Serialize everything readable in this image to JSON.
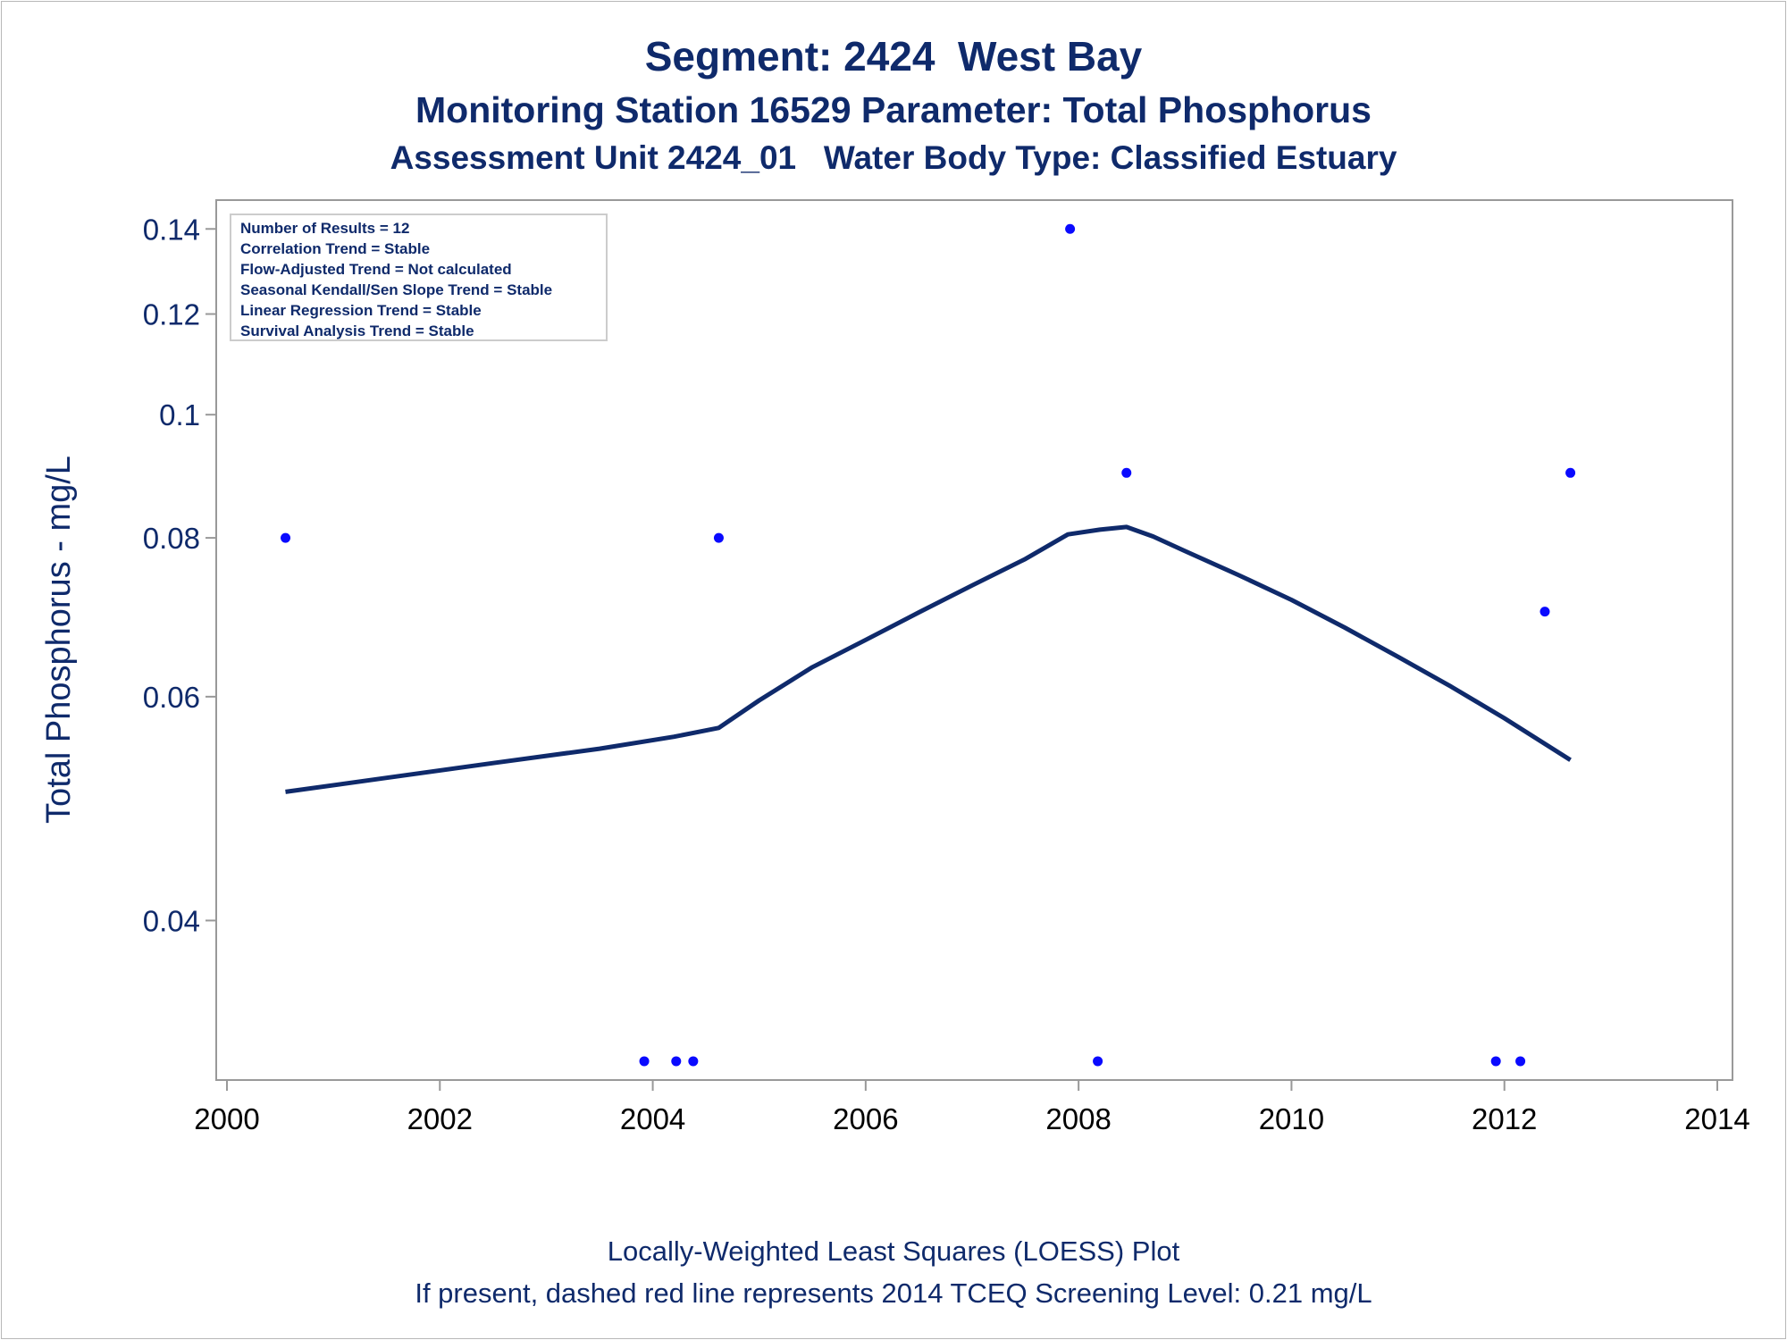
{
  "titles": {
    "line1": "Segment: 2424  West Bay",
    "line2": "Monitoring Station 16529 Parameter: Total Phosphorus",
    "line3": "Assessment Unit 2424_01   Water Body Type: Classified Estuary"
  },
  "footnotes": {
    "line1": "Locally-Weighted Least Squares (LOESS) Plot",
    "line2": "If present, dashed red line represents 2014 TCEQ Screening Level: 0.21 mg/L"
  },
  "stats_box": [
    "Number of Results = 12",
    "Correlation Trend = Stable",
    "Flow-Adjusted Trend = Not calculated",
    "Seasonal Kendall/Sen Slope Trend = Stable",
    "Linear Regression Trend = Stable",
    "Survival Analysis Trend = Stable"
  ],
  "colors": {
    "text": "#0f2a6b",
    "points": "#0a0aff",
    "loess_line": "#0f2a6b",
    "axis": "#999999"
  },
  "chart_data": {
    "type": "scatter",
    "ylabel": "Total Phosphorus - mg/L",
    "y_scale": "log",
    "xlim": [
      2000,
      2014
    ],
    "ylim": [
      0.0305,
      0.1435
    ],
    "x_ticks": [
      2000,
      2002,
      2004,
      2006,
      2008,
      2010,
      2012,
      2014
    ],
    "y_ticks": [
      {
        "value": 0.04,
        "label": "0.04"
      },
      {
        "value": 0.06,
        "label": "0.06"
      },
      {
        "value": 0.08,
        "label": "0.08"
      },
      {
        "value": 0.1,
        "label": "0.1"
      },
      {
        "value": 0.12,
        "label": "0.12"
      },
      {
        "value": 0.14,
        "label": "0.14"
      }
    ],
    "grid": false,
    "legend": "top-left stats box",
    "series": [
      {
        "type": "scatter",
        "points": [
          {
            "x": 2000.55,
            "y": 0.08
          },
          {
            "x": 2003.92,
            "y": 0.031
          },
          {
            "x": 2004.22,
            "y": 0.031
          },
          {
            "x": 2004.38,
            "y": 0.031
          },
          {
            "x": 2004.62,
            "y": 0.08
          },
          {
            "x": 2007.92,
            "y": 0.14
          },
          {
            "x": 2008.18,
            "y": 0.031
          },
          {
            "x": 2008.45,
            "y": 0.09
          },
          {
            "x": 2011.92,
            "y": 0.031
          },
          {
            "x": 2012.15,
            "y": 0.031
          },
          {
            "x": 2012.38,
            "y": 0.07
          },
          {
            "x": 2012.62,
            "y": 0.09
          }
        ]
      },
      {
        "type": "line",
        "points": [
          {
            "x": 2000.55,
            "y": 0.0505
          },
          {
            "x": 2001.5,
            "y": 0.0518
          },
          {
            "x": 2002.5,
            "y": 0.0532
          },
          {
            "x": 2003.5,
            "y": 0.0546
          },
          {
            "x": 2004.2,
            "y": 0.0558
          },
          {
            "x": 2004.62,
            "y": 0.0567
          },
          {
            "x": 2005.0,
            "y": 0.0596
          },
          {
            "x": 2005.5,
            "y": 0.0633
          },
          {
            "x": 2006.0,
            "y": 0.0665
          },
          {
            "x": 2006.5,
            "y": 0.0699
          },
          {
            "x": 2007.0,
            "y": 0.0734
          },
          {
            "x": 2007.5,
            "y": 0.077
          },
          {
            "x": 2007.9,
            "y": 0.0805
          },
          {
            "x": 2008.2,
            "y": 0.0812
          },
          {
            "x": 2008.45,
            "y": 0.0816
          },
          {
            "x": 2008.7,
            "y": 0.0802
          },
          {
            "x": 2009.0,
            "y": 0.0781
          },
          {
            "x": 2009.5,
            "y": 0.0748
          },
          {
            "x": 2010.0,
            "y": 0.0715
          },
          {
            "x": 2010.5,
            "y": 0.068
          },
          {
            "x": 2011.0,
            "y": 0.0645
          },
          {
            "x": 2011.5,
            "y": 0.0611
          },
          {
            "x": 2012.0,
            "y": 0.0577
          },
          {
            "x": 2012.62,
            "y": 0.0535
          }
        ]
      }
    ]
  }
}
